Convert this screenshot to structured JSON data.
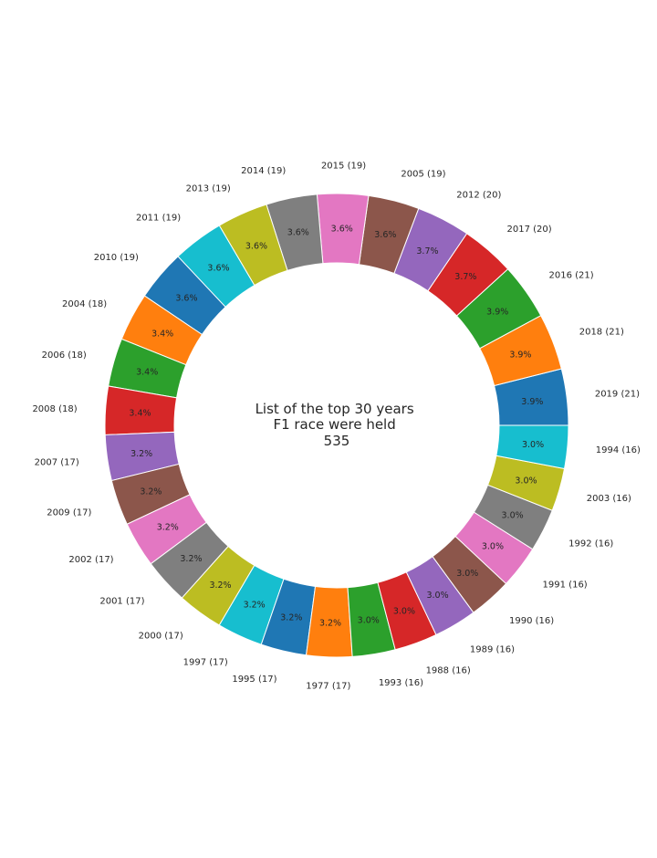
{
  "chart_data": {
    "type": "pie",
    "variant": "donut",
    "center_text": [
      "List of  the top 30 years",
      "F1 race were held",
      "535"
    ],
    "categories": [
      "2019 (21)",
      "2018 (21)",
      "2016 (21)",
      "2017 (20)",
      "2012 (20)",
      "2005 (19)",
      "2015 (19)",
      "2014 (19)",
      "2013 (19)",
      "2011 (19)",
      "2010 (19)",
      "2004 (18)",
      "2006 (18)",
      "2008 (18)",
      "2007 (17)",
      "2009 (17)",
      "2002 (17)",
      "2001 (17)",
      "2000 (17)",
      "1997 (17)",
      "1995 (17)",
      "1977 (17)",
      "1993 (16)",
      "1988 (16)",
      "1989 (16)",
      "1990 (16)",
      "1991 (16)",
      "1992 (16)",
      "2003 (16)",
      "1994 (16)"
    ],
    "values": [
      21,
      21,
      21,
      20,
      20,
      19,
      19,
      19,
      19,
      19,
      19,
      18,
      18,
      18,
      17,
      17,
      17,
      17,
      17,
      17,
      17,
      17,
      16,
      16,
      16,
      16,
      16,
      16,
      16,
      16
    ],
    "percent_labels": [
      "3.9%",
      "3.9%",
      "3.9%",
      "3.7%",
      "3.7%",
      "3.6%",
      "3.6%",
      "3.6%",
      "3.6%",
      "3.6%",
      "3.6%",
      "3.4%",
      "3.4%",
      "3.4%",
      "3.2%",
      "3.2%",
      "3.2%",
      "3.2%",
      "3.2%",
      "3.2%",
      "3.2%",
      "3.2%",
      "3.0%",
      "3.0%",
      "3.0%",
      "3.0%",
      "3.0%",
      "3.0%",
      "3.0%",
      "3.0%"
    ],
    "colors": [
      "#1f77b4",
      "#ff7f0e",
      "#2ca02c",
      "#d62728",
      "#9467bd",
      "#8c564b",
      "#e377c2",
      "#7f7f7f",
      "#bcbd22",
      "#17becf"
    ],
    "total": 535,
    "start_angle": "3 o'clock",
    "direction": "counterclockwise",
    "legend": "none"
  }
}
